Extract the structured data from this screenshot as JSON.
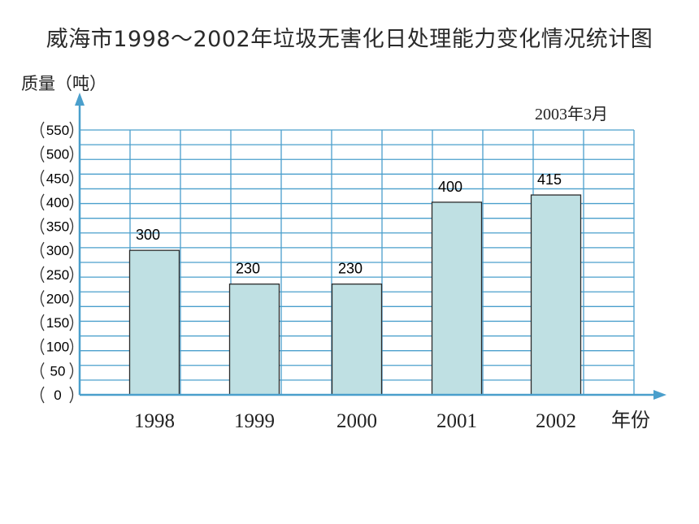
{
  "chart_data": {
    "type": "bar",
    "title": "威海市1998～2002年垃圾无害化日处理能力变化情况统计图",
    "ylabel": "质量（吨）",
    "xlabel": "年份",
    "annotation": "2003年3月",
    "categories": [
      "1998",
      "1999",
      "2000",
      "2001",
      "2002"
    ],
    "values": [
      300,
      230,
      230,
      400,
      415
    ],
    "value_labels": [
      "300",
      "230",
      "230",
      "400",
      "415"
    ],
    "yticks": [
      0,
      50,
      100,
      150,
      200,
      250,
      300,
      350,
      400,
      450,
      500,
      550
    ],
    "ytick_labels": [
      "0",
      "50",
      "100",
      "150",
      "200",
      "250",
      "300",
      "350",
      "400",
      "450",
      "500",
      "550"
    ],
    "ylim": [
      0,
      550
    ],
    "grid": true,
    "colors": {
      "bar_fill": "#bfe0e3",
      "bar_stroke": "#2b2b2b",
      "grid": "#4a9fcc",
      "axis": "#4a9fcc"
    }
  }
}
